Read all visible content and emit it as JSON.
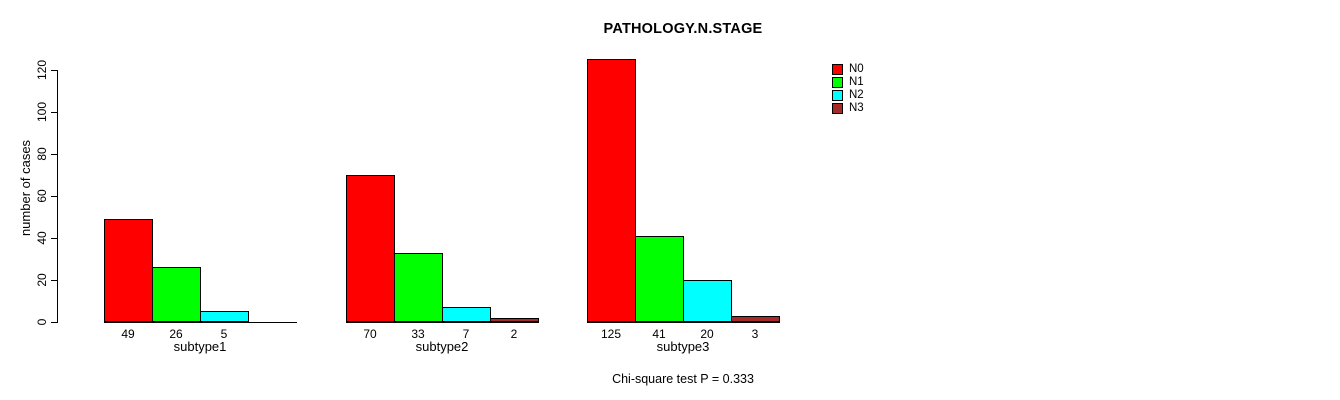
{
  "chart_data": {
    "type": "bar",
    "title": "PATHOLOGY.N.STAGE",
    "ylabel": "number of cases",
    "xlabel": "",
    "ylim": [
      0,
      120
    ],
    "yticks": [
      0,
      20,
      40,
      60,
      80,
      100,
      120
    ],
    "grid": false,
    "legend": {
      "position": "top-right",
      "entries": [
        {
          "label": "N0",
          "color": "#ff0000"
        },
        {
          "label": "N1",
          "color": "#00ff00"
        },
        {
          "label": "N2",
          "color": "#00ffff"
        },
        {
          "label": "N3",
          "color": "#a52a2a"
        }
      ]
    },
    "categories": [
      "subtype1",
      "subtype2",
      "subtype3"
    ],
    "series": [
      {
        "name": "N0",
        "color": "#ff0000",
        "values": [
          49,
          70,
          125
        ]
      },
      {
        "name": "N1",
        "color": "#00ff00",
        "values": [
          26,
          33,
          41
        ]
      },
      {
        "name": "N2",
        "color": "#00ffff",
        "values": [
          5,
          7,
          20
        ]
      },
      {
        "name": "N3",
        "color": "#a52a2a",
        "values": [
          null,
          2,
          3
        ]
      }
    ],
    "bar_value_labels": true,
    "annotation": "Chi-square test P = 0.333"
  },
  "colors": {
    "background": "#ffffff",
    "axis": "#000000",
    "text": "#000000"
  }
}
